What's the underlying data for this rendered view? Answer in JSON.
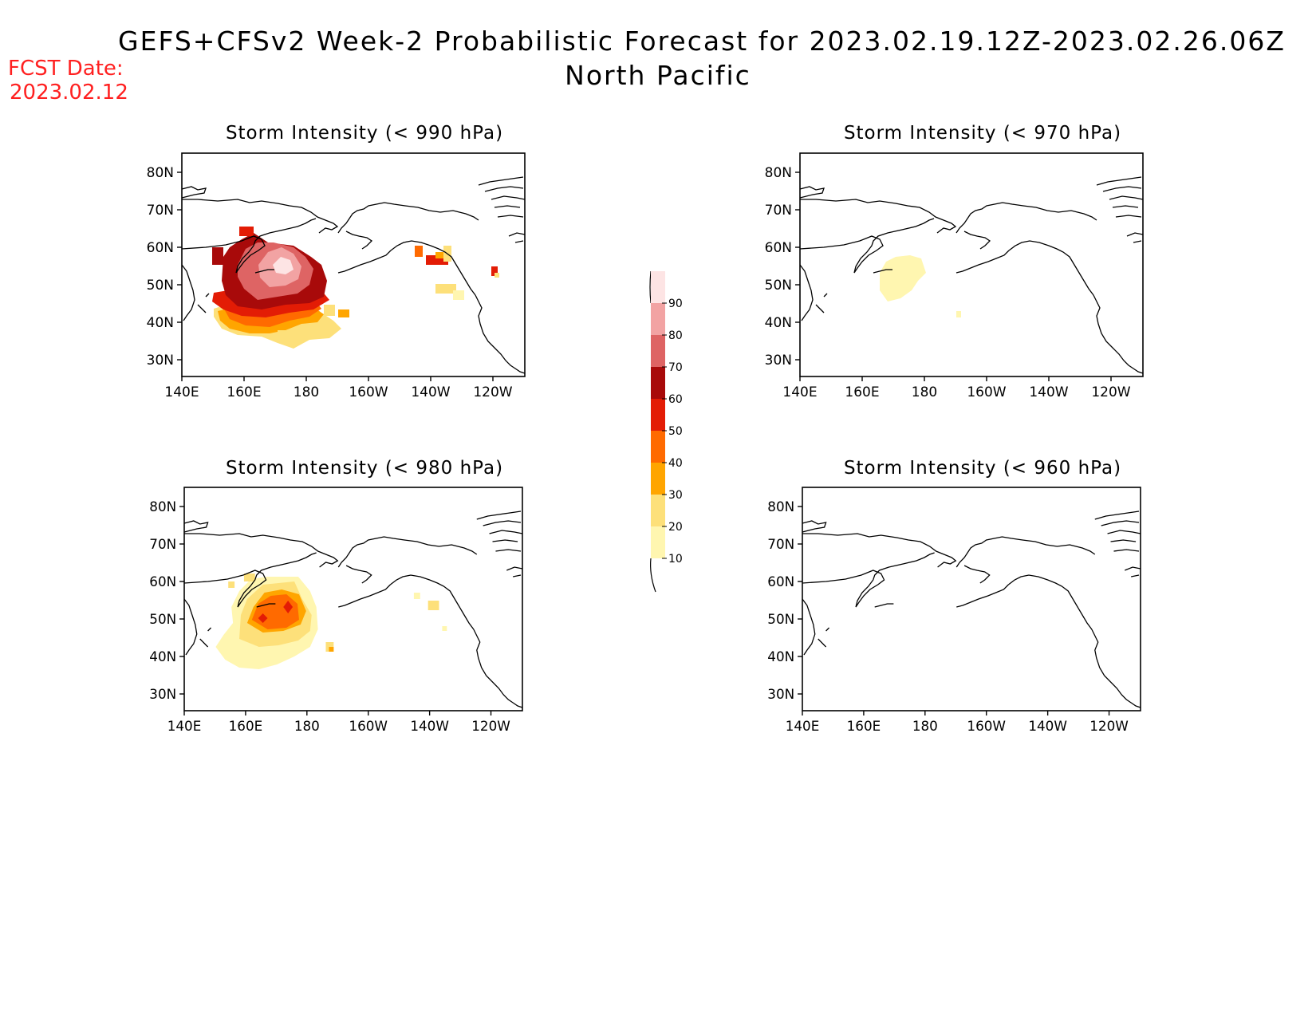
{
  "header": {
    "title": "GEFS+CFSv2 Week-2 Probabilistic Forecast for 2023.02.19.12Z-2023.02.26.06Z",
    "region": "North Pacific",
    "fcst_label": "FCST Date:",
    "fcst_date": "2023.02.12"
  },
  "axes": {
    "lat_ticks": [
      "80N",
      "70N",
      "60N",
      "50N",
      "40N",
      "30N"
    ],
    "lon_ticks": [
      "140E",
      "160E",
      "180",
      "160W",
      "140W",
      "120W"
    ]
  },
  "panels": [
    {
      "id": "p990",
      "title": "Storm Intensity (< 990 hPa)"
    },
    {
      "id": "p970",
      "title": "Storm Intensity (< 970 hPa)"
    },
    {
      "id": "p980",
      "title": "Storm Intensity (< 980 hPa)"
    },
    {
      "id": "p960",
      "title": "Storm Intensity (< 960 hPa)"
    }
  ],
  "colorbar": {
    "labels": [
      "90",
      "80",
      "70",
      "60",
      "50",
      "40",
      "30",
      "20",
      "10"
    ],
    "colors": [
      "#fde4e4",
      "#f2a3a3",
      "#de6464",
      "#a80a0a",
      "#e31c05",
      "#ff6a00",
      "#ffa500",
      "#fde07a",
      "#fff6b0"
    ]
  },
  "map_colors": {
    "p10": "#fff6b0",
    "p20": "#fde07a",
    "p30": "#ffa500",
    "p40": "#ff6a00",
    "p50": "#e31c05",
    "p60": "#a80a0a",
    "p70": "#de6464",
    "p80": "#f2a3a3",
    "p90": "#fde4e4"
  }
}
